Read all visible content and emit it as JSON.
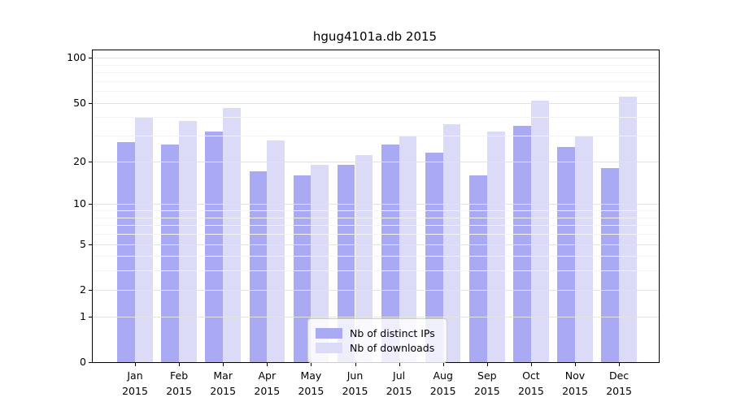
{
  "title": "hgug4101a.db 2015",
  "colors": {
    "distinct_ips": "#a9a9f4",
    "downloads": "#dbdbf8",
    "grid_major": "#e3e3e3",
    "grid_minor": "#f3f3f3",
    "axis": "#000000",
    "legend_border": "#cccccc"
  },
  "legend": {
    "items": [
      {
        "label": "Nb of distinct IPs",
        "color_key": "distinct_ips"
      },
      {
        "label": "Nb of downloads",
        "color_key": "downloads"
      }
    ]
  },
  "chart_data": {
    "type": "bar",
    "title": "hgug4101a.db 2015",
    "categories": [
      "Jan",
      "Feb",
      "Mar",
      "Apr",
      "May",
      "Jun",
      "Jul",
      "Aug",
      "Sep",
      "Oct",
      "Nov",
      "Dec"
    ],
    "category_year": "2015",
    "series": [
      {
        "name": "Nb of distinct IPs",
        "color_key": "distinct_ips",
        "values": [
          27,
          26,
          32,
          17,
          16,
          19,
          26,
          23,
          16,
          35,
          25,
          18
        ]
      },
      {
        "name": "Nb of downloads",
        "color_key": "downloads",
        "values": [
          40,
          38,
          46,
          28,
          19,
          22,
          30,
          36,
          32,
          52,
          30,
          55
        ]
      }
    ],
    "yscale": "log1p",
    "yticks": [
      0,
      1,
      2,
      5,
      10,
      20,
      50,
      100
    ],
    "minor_yticks": [
      3,
      4,
      6,
      7,
      8,
      9,
      30,
      40,
      60,
      70,
      80,
      90
    ],
    "ylim": [
      0,
      112
    ],
    "grid": true,
    "legend_position": "lower center"
  }
}
